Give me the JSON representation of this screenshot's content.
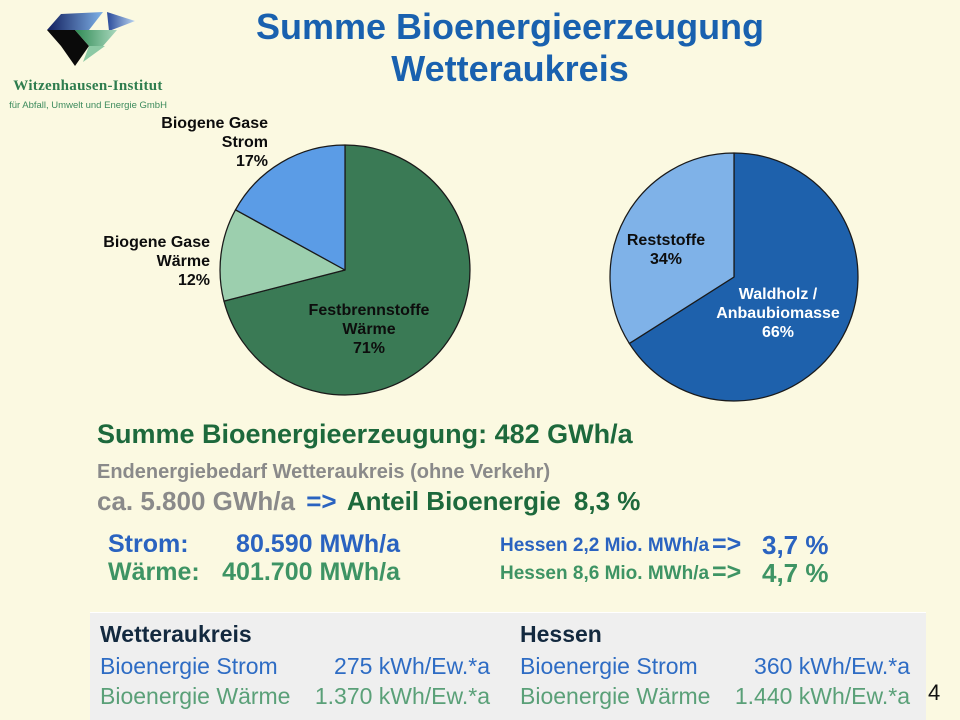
{
  "logo": {
    "title": "Witzenhausen-Institut",
    "subtitle": "für Abfall, Umwelt und Energie GmbH"
  },
  "title": {
    "line1": "Summe Bioenergieerzeugung",
    "line2": "Wetteraukreis"
  },
  "chart_data": [
    {
      "type": "pie",
      "name": "bioenergieerzeugung-anteile",
      "start": "12-oclock",
      "direction": "clockwise",
      "legend": "inline-labels",
      "slices": [
        {
          "label": "Festbrennstoffe Wärme",
          "pct": 71,
          "color": "#3A7A55",
          "label_lines": [
            "Festbrennstoffe",
            "Wärme",
            "71%"
          ]
        },
        {
          "label": "Biogene Gase Wärme",
          "pct": 12,
          "color": "#9CCFAE",
          "label_lines": [
            "Biogene Gase",
            "Wärme",
            "12%"
          ]
        },
        {
          "label": "Biogene Gase Strom",
          "pct": 17,
          "color": "#5B9CE6",
          "label_lines": [
            "Biogene Gase",
            "Strom",
            "17%"
          ]
        }
      ]
    },
    {
      "type": "pie",
      "name": "biomasse-herkunft",
      "start": "12-oclock",
      "direction": "clockwise",
      "legend": "inline-labels",
      "slices": [
        {
          "label": "Waldholz / Anbaubiomasse",
          "pct": 66,
          "color": "#1E61AC",
          "label_lines": [
            "Waldholz /",
            "Anbaubiomasse",
            "66%"
          ]
        },
        {
          "label": "Reststoffe",
          "pct": 34,
          "color": "#7FB2E8",
          "label_lines": [
            "Reststoffe",
            "34%"
          ]
        }
      ]
    }
  ],
  "summary": {
    "heading": "Summe Bioenergieerzeugung: 482 GWh/a",
    "demand_line": "Endenergiebedarf Wetteraukreis (ohne Verkehr)",
    "demand_value": "ca. 5.800 GWh/a",
    "arrow": "=>",
    "share_label": "Anteil Bioenergie",
    "share_value": "8,3 %",
    "rows": [
      {
        "label": "Strom:",
        "value": "80.590 MWh/a",
        "hessen": "Hessen 2,2 Mio. MWh/a",
        "arrow": "=>",
        "share": "3,7 %"
      },
      {
        "label": "Wärme:",
        "value": "401.700 MWh/a",
        "hessen": "Hessen 8,6 Mio. MWh/a",
        "arrow": "=>",
        "share": "4,7 %"
      }
    ]
  },
  "table": {
    "columns": [
      {
        "header": "Wetteraukreis",
        "rows": [
          {
            "label": "Bioenergie Strom",
            "value": "275 kWh/Ew.*a"
          },
          {
            "label": "Bioenergie Wärme",
            "value": "1.370 kWh/Ew.*a"
          }
        ]
      },
      {
        "header": "Hessen",
        "rows": [
          {
            "label": "Bioenergie Strom",
            "value": "360 kWh/Ew.*a"
          },
          {
            "label": "Bioenergie Wärme",
            "value": "1.440 kWh/Ew.*a"
          }
        ]
      }
    ]
  },
  "page_number": "4",
  "colors": {
    "background": "#FBF9E1",
    "title_blue": "#1961AF",
    "dark_green_text": "#1D693C",
    "gray_text": "#8A8A8A",
    "strom_blue": "#2A63C0",
    "waerme_green": "#3E9464",
    "pie1_dark_green": "#3A7A55",
    "pie1_light_green": "#9CCFAE",
    "pie1_blue": "#5B9CE6",
    "pie2_dark_blue": "#1E61AC",
    "pie2_light_blue": "#7FB2E8",
    "table_bg": "#EFEFEF",
    "table_header_navy": "#13293F",
    "table_blue": "#2E6CC4",
    "table_green": "#5AA078"
  }
}
